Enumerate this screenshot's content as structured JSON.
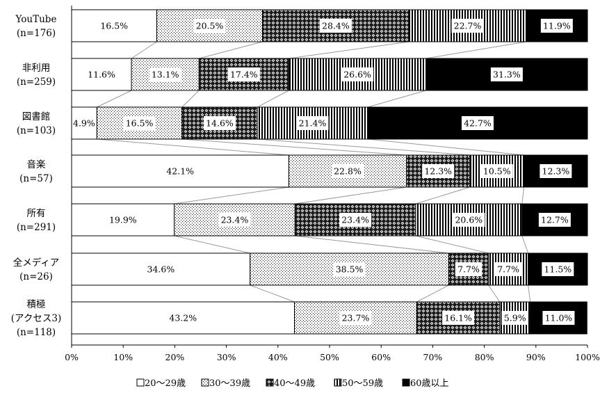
{
  "chart_data": {
    "type": "bar",
    "orientation": "horizontal",
    "stacked": "100%",
    "categories": [
      [
        "YouTube",
        "(n=176)"
      ],
      [
        "非利用",
        "(n=259)"
      ],
      [
        "図書館",
        "(n=103)"
      ],
      [
        "音楽",
        "(n=57)"
      ],
      [
        "所有",
        "(n=291)"
      ],
      [
        "全メディア",
        "(n=26)"
      ],
      [
        "積極",
        "(アクセス3)",
        "(n=118)"
      ]
    ],
    "series": [
      {
        "name": "20～29歳",
        "pattern": "white",
        "values": [
          16.5,
          11.6,
          4.9,
          42.1,
          19.9,
          34.6,
          43.2
        ]
      },
      {
        "name": "30～39歳",
        "pattern": "dots",
        "values": [
          20.5,
          13.1,
          16.5,
          22.8,
          23.4,
          38.5,
          23.7
        ]
      },
      {
        "name": "40～49歳",
        "pattern": "diamond",
        "values": [
          28.4,
          17.4,
          14.6,
          12.3,
          23.4,
          7.7,
          16.1
        ]
      },
      {
        "name": "50～59歳",
        "pattern": "vertical-stripes",
        "values": [
          22.7,
          26.6,
          21.4,
          10.5,
          20.6,
          7.7,
          5.9
        ]
      },
      {
        "name": "60歳以上",
        "pattern": "black",
        "values": [
          11.9,
          31.3,
          42.7,
          12.3,
          12.7,
          11.5,
          11.0
        ]
      }
    ],
    "data_labels": [
      [
        "16.5%",
        "20.5%",
        "28.4%",
        "22.7%",
        "11.9%"
      ],
      [
        "11.6%",
        "13.1%",
        "17.4%",
        "26.6%",
        "31.3%"
      ],
      [
        "4.9%",
        "16.5%",
        "14.6%",
        "21.4%",
        "42.7%"
      ],
      [
        "42.1%",
        "22.8%",
        "12.3%",
        "10.5%",
        "12.3%"
      ],
      [
        "19.9%",
        "23.4%",
        "23.4%",
        "20.6%",
        "12.7%"
      ],
      [
        "34.6%",
        "38.5%",
        "7.7%",
        "7.7%",
        "11.5%"
      ],
      [
        "43.2%",
        "23.7%",
        "16.1%",
        "5.9%",
        "11.0%"
      ]
    ],
    "xlim": [
      0,
      100
    ],
    "x_ticks": [
      "0%",
      "10%",
      "20%",
      "30%",
      "40%",
      "50%",
      "60%",
      "70%",
      "80%",
      "90%",
      "100%"
    ],
    "series_lines": true,
    "grid": false,
    "legend_position": "bottom"
  }
}
